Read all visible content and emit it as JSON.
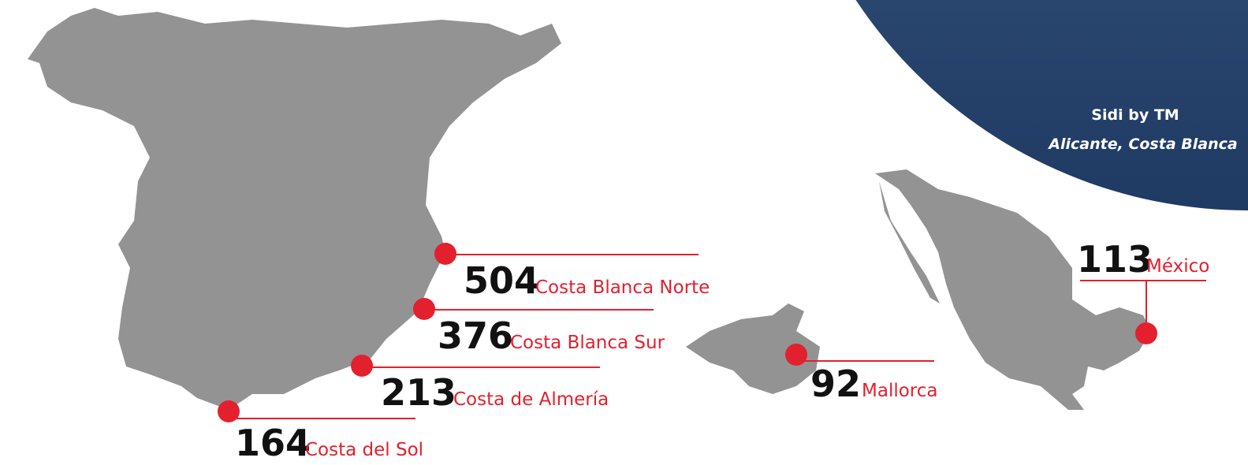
{
  "locations": [
    {
      "value": 504,
      "name": "Costa Blanca Norte"
    },
    {
      "value": 376,
      "name": "Costa Blanca Sur"
    },
    {
      "value": 213,
      "name": "Costa de Almería"
    },
    {
      "value": 164,
      "name": "Costa del Sol"
    },
    {
      "value": 92,
      "name": "Mallorca"
    },
    {
      "value": 113,
      "name": "México"
    }
  ],
  "photo": {
    "title": "Sidi by TM",
    "subtitle": "Alicante, Costa Blanca"
  }
}
